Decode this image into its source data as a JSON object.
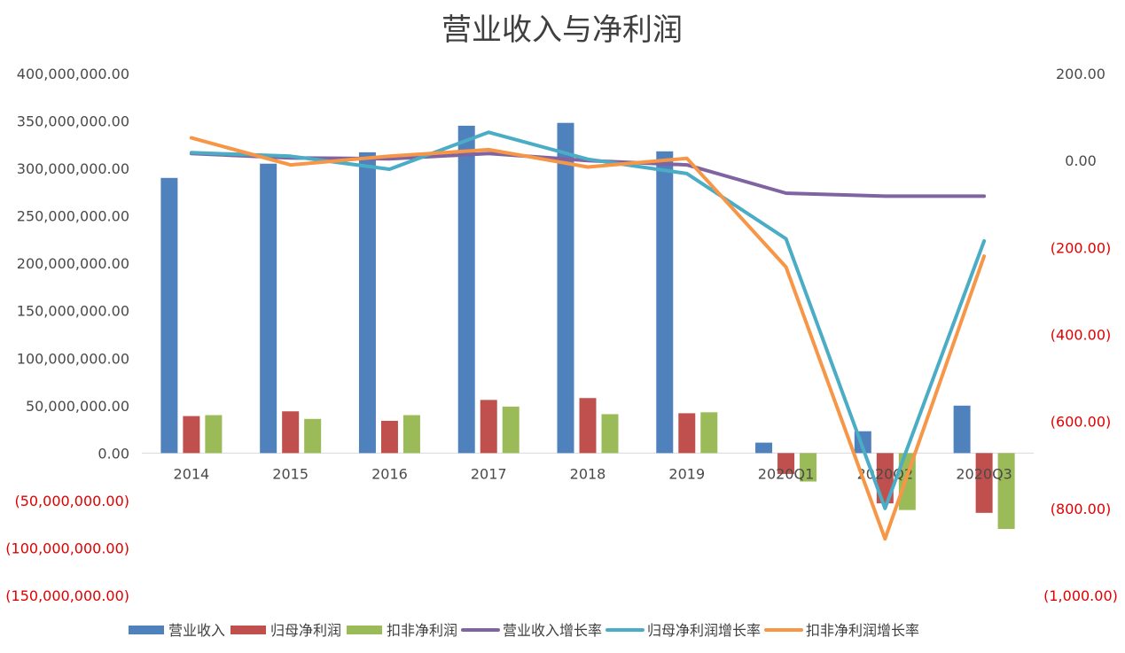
{
  "chart_data": {
    "type": "bar",
    "title": "营业收入与净利润",
    "categories": [
      "2014",
      "2015",
      "2016",
      "2017",
      "2018",
      "2019",
      "2020Q1",
      "2020Q2",
      "2020Q3"
    ],
    "y_left": {
      "range": [
        -150000000,
        400000000
      ],
      "ticks": [
        "400,000,000.00",
        "350,000,000.00",
        "300,000,000.00",
        "250,000,000.00",
        "200,000,000.00",
        "150,000,000.00",
        "100,000,000.00",
        "50,000,000.00",
        "0.00",
        "(50,000,000.00)",
        "(100,000,000.00)",
        "(150,000,000.00)"
      ],
      "tick_values": [
        400000000,
        350000000,
        300000000,
        250000000,
        200000000,
        150000000,
        100000000,
        50000000,
        0,
        -50000000,
        -100000000,
        -150000000
      ]
    },
    "y_right": {
      "range": [
        -1000,
        200
      ],
      "ticks": [
        "200.00",
        "0.00",
        "(200.00)",
        "(400.00)",
        "(600.00)",
        "(800.00)",
        "(1,000.00)"
      ],
      "tick_values": [
        200,
        0,
        -200,
        -400,
        -600,
        -800,
        -1000
      ]
    },
    "negative_tick_color": "#e00000",
    "grid": false,
    "legend_position": "bottom",
    "bar_series": [
      {
        "name": "营业收入",
        "color": "#4f81bd",
        "values": [
          290000000,
          305000000,
          317000000,
          345000000,
          348000000,
          318000000,
          11000000,
          23000000,
          50000000
        ]
      },
      {
        "name": "归母净利润",
        "color": "#c0504d",
        "values": [
          39000000,
          44000000,
          34000000,
          56000000,
          58000000,
          42000000,
          -22000000,
          -53000000,
          -63000000
        ]
      },
      {
        "name": "扣非净利润",
        "color": "#9bbb59",
        "values": [
          40000000,
          36000000,
          40000000,
          49000000,
          41000000,
          43000000,
          -30000000,
          -60000000,
          -80000000
        ]
      }
    ],
    "line_series": [
      {
        "name": "营业收入增长率",
        "color": "#8064a2",
        "values": [
          16,
          6,
          4,
          16,
          0,
          -10,
          -75,
          -82,
          -82
        ]
      },
      {
        "name": "归母净利润增长率",
        "color": "#4bacc6",
        "values": [
          18,
          10,
          -20,
          65,
          3,
          -30,
          -180,
          -800,
          -185
        ]
      },
      {
        "name": "扣非净利润增长率",
        "color": "#f79646",
        "values": [
          52,
          -10,
          10,
          25,
          -15,
          5,
          -245,
          -870,
          -220
        ]
      }
    ]
  }
}
